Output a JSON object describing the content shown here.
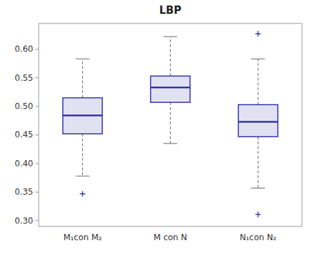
{
  "chart_data": {
    "type": "box",
    "title": "LBP",
    "categories": [
      "M₁con M₂",
      "M con N",
      "N₁con N₂"
    ],
    "boxes": [
      {
        "q1": 0.452,
        "median": 0.484,
        "q3": 0.515,
        "whisker_low": 0.378,
        "whisker_high": 0.583,
        "fliers": [
          0.347
        ]
      },
      {
        "q1": 0.507,
        "median": 0.533,
        "q3": 0.553,
        "whisker_low": 0.435,
        "whisker_high": 0.622,
        "fliers": []
      },
      {
        "q1": 0.447,
        "median": 0.473,
        "q3": 0.503,
        "whisker_low": 0.357,
        "whisker_high": 0.583,
        "fliers": [
          0.311,
          0.627
        ]
      }
    ],
    "color": "#3333aa",
    "ylim": [
      0.29,
      0.645
    ],
    "yticks": [
      {
        "value": 0.3,
        "label": "0.30"
      },
      0.35,
      {
        "value": 0.4,
        "label": "0.40"
      },
      0.45,
      {
        "value": 0.5,
        "label": "0.50"
      },
      0.55,
      {
        "value": 0.6,
        "label": "0.60"
      }
    ],
    "grid": false
  }
}
